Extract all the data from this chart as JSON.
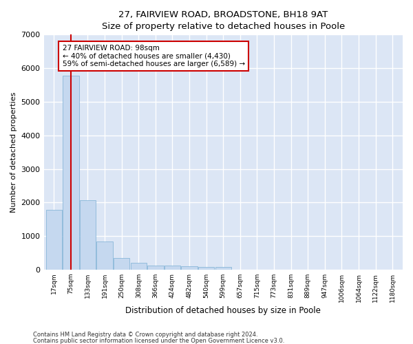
{
  "title1": "27, FAIRVIEW ROAD, BROADSTONE, BH18 9AT",
  "title2": "Size of property relative to detached houses in Poole",
  "xlabel": "Distribution of detached houses by size in Poole",
  "ylabel": "Number of detached properties",
  "bar_color": "#c5d8ef",
  "bar_edge_color": "#7aafd4",
  "background_color": "#dce6f5",
  "grid_color": "#ffffff",
  "vline_color": "#cc0000",
  "vline_x": 1,
  "categories": [
    "17sqm",
    "75sqm",
    "133sqm",
    "191sqm",
    "250sqm",
    "308sqm",
    "366sqm",
    "424sqm",
    "482sqm",
    "540sqm",
    "599sqm",
    "657sqm",
    "715sqm",
    "773sqm",
    "831sqm",
    "889sqm",
    "947sqm",
    "1006sqm",
    "1064sqm",
    "1122sqm",
    "1180sqm"
  ],
  "values": [
    1780,
    5780,
    2060,
    830,
    340,
    195,
    130,
    115,
    100,
    90,
    80,
    0,
    0,
    0,
    0,
    0,
    0,
    0,
    0,
    0,
    0
  ],
  "ylim": [
    0,
    7000
  ],
  "yticks": [
    0,
    1000,
    2000,
    3000,
    4000,
    5000,
    6000,
    7000
  ],
  "annotation_title": "27 FAIRVIEW ROAD: 98sqm",
  "annotation_line1": "← 40% of detached houses are smaller (4,430)",
  "annotation_line2": "59% of semi-detached houses are larger (6,589) →",
  "annotation_box_color": "#ffffff",
  "annotation_border_color": "#cc0000",
  "footnote1": "Contains HM Land Registry data © Crown copyright and database right 2024.",
  "footnote2": "Contains public sector information licensed under the Open Government Licence v3.0."
}
